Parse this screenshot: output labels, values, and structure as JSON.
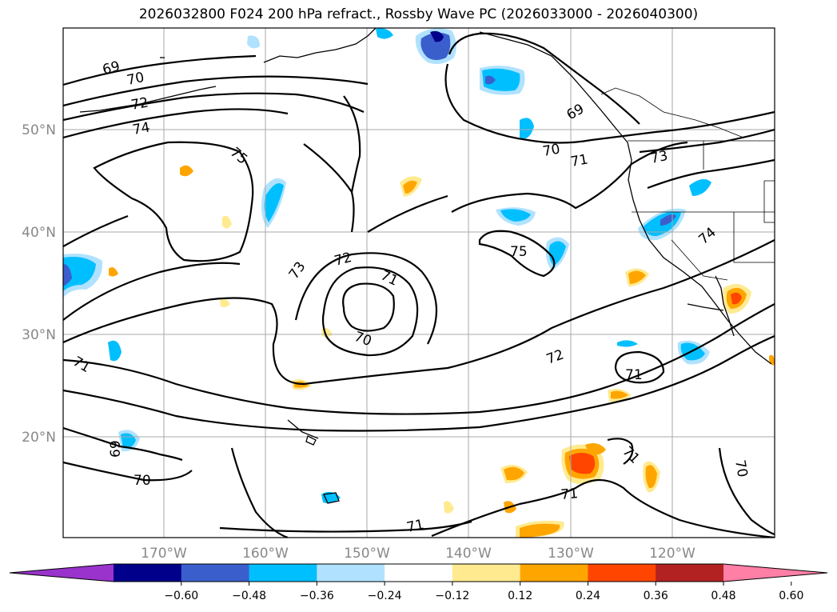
{
  "title": "2026032800 F024 200 hPa refract., Rossby Wave PC (2026033000 - 2026040300)",
  "map": {
    "lat_labels": [
      "50°N",
      "40°N",
      "30°N",
      "20°N"
    ],
    "lon_labels": [
      "170°W",
      "160°W",
      "150°W",
      "140°W",
      "130°W",
      "120°W"
    ],
    "contour_labels": [
      "69",
      "70",
      "72",
      "74",
      "75",
      "73",
      "72",
      "71",
      "70",
      "71",
      "69",
      "70",
      "75",
      "69",
      "70",
      "71",
      "73",
      "74",
      "72",
      "71",
      "71",
      "71",
      "71",
      "70"
    ]
  },
  "colorbar": {
    "ticks": [
      "−0.60",
      "−0.48",
      "−0.36",
      "−0.24",
      "−0.12",
      "0.12",
      "0.24",
      "0.36",
      "0.48",
      "0.60"
    ],
    "colors": [
      "#9933cc",
      "#00008b",
      "#3a5fcd",
      "#00bfff",
      "#b0e2ff",
      "#ffffff",
      "#ffea8f",
      "#ffa500",
      "#ff4500",
      "#b22222",
      "#ff7fa6"
    ]
  }
}
